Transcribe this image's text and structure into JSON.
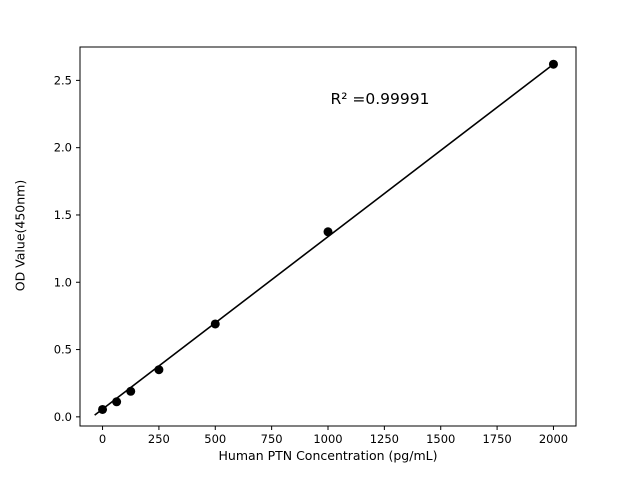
{
  "chart_data": {
    "type": "scatter",
    "title": "",
    "xlabel": "Human PTN Concentration (pg/mL)",
    "ylabel": "OD Value(450nm)",
    "annotation": "R² =0.99991",
    "annotation_pos": {
      "x": 1230,
      "y": 2.36
    },
    "x": [
      0,
      62.5,
      125,
      250,
      500,
      1000,
      2000
    ],
    "y": [
      0.055,
      0.112,
      0.19,
      0.35,
      0.69,
      1.375,
      2.62
    ],
    "fit_line": {
      "x": [
        -35,
        2010
      ],
      "y": [
        0.013,
        2.633
      ]
    },
    "xticks": [
      0,
      250,
      500,
      750,
      1000,
      1250,
      1500,
      1750,
      2000
    ],
    "yticks": [
      0.0,
      0.5,
      1.0,
      1.5,
      2.0,
      2.5
    ],
    "xlim": [
      -100,
      2100
    ],
    "ylim": [
      -0.068,
      2.748
    ],
    "grid": false,
    "legend": null,
    "marker_color": "#000000",
    "line_color": "#000000",
    "axis_color": "#000000",
    "background": "#ffffff"
  }
}
